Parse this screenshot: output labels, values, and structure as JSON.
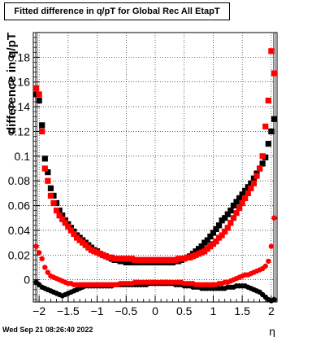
{
  "chart_data": {
    "type": "scatter",
    "title": "Fitted difference in q/pT for Global Rec All EtapT",
    "xlabel": "η",
    "ylabel": "difference in q/pT",
    "xlim": [
      -2.1,
      2.1
    ],
    "ylim": [
      -0.018,
      0.2
    ],
    "xticks": [
      -2,
      -1.5,
      -1,
      -0.5,
      0,
      0.5,
      1,
      1.5,
      2
    ],
    "xtick_labels": [
      "−2",
      "−1.5",
      "−1",
      "−0.5",
      "0",
      "0.5",
      "1",
      "1.5",
      "2"
    ],
    "yticks": [
      0,
      0.02,
      0.04,
      0.06,
      0.08,
      0.1,
      0.12,
      0.14,
      0.16,
      0.18
    ],
    "ytick_labels": [
      "0",
      "0.02",
      "0.04",
      "0.06",
      "0.08",
      "0.1",
      "0.12",
      "0.14",
      "0.16",
      "0.18"
    ],
    "grid": true,
    "series": [
      {
        "color": "#000000",
        "marker": "square",
        "x": [
          -2.05,
          -2.0,
          -1.95,
          -1.9,
          -1.85,
          -1.8,
          -1.75,
          -1.7,
          -1.65,
          -1.6,
          -1.55,
          -1.5,
          -1.45,
          -1.4,
          -1.35,
          -1.3,
          -1.25,
          -1.2,
          -1.15,
          -1.1,
          -1.05,
          -1.0,
          -0.95,
          -0.9,
          -0.85,
          -0.8,
          -0.75,
          -0.7,
          -0.65,
          -0.6,
          -0.55,
          -0.5,
          -0.45,
          -0.4,
          -0.35,
          -0.3,
          -0.25,
          -0.2,
          -0.15,
          -0.1,
          -0.05,
          0.0,
          0.05,
          0.1,
          0.15,
          0.2,
          0.25,
          0.3,
          0.35,
          0.4,
          0.45,
          0.5,
          0.55,
          0.6,
          0.65,
          0.7,
          0.75,
          0.8,
          0.85,
          0.9,
          0.95,
          1.0,
          1.05,
          1.1,
          1.15,
          1.2,
          1.25,
          1.3,
          1.35,
          1.4,
          1.45,
          1.5,
          1.55,
          1.6,
          1.65,
          1.7,
          1.75,
          1.8,
          1.85,
          1.9,
          1.95,
          2.0,
          2.05
        ],
        "y": [
          0.15,
          0.145,
          0.125,
          0.098,
          0.087,
          0.074,
          0.068,
          0.062,
          0.056,
          0.052,
          0.048,
          0.045,
          0.042,
          0.039,
          0.036,
          0.034,
          0.032,
          0.03,
          0.028,
          0.026,
          0.024,
          0.023,
          0.021,
          0.02,
          0.019,
          0.018,
          0.017,
          0.016,
          0.016,
          0.015,
          0.015,
          0.014,
          0.014,
          0.014,
          0.014,
          0.014,
          0.014,
          0.014,
          0.014,
          0.014,
          0.014,
          0.014,
          0.014,
          0.014,
          0.014,
          0.014,
          0.014,
          0.014,
          0.015,
          0.015,
          0.016,
          0.017,
          0.018,
          0.019,
          0.021,
          0.023,
          0.025,
          0.027,
          0.03,
          0.032,
          0.035,
          0.038,
          0.041,
          0.044,
          0.048,
          0.05,
          0.053,
          0.056,
          0.06,
          0.063,
          0.066,
          0.069,
          0.072,
          0.075,
          0.078,
          0.082,
          0.086,
          0.09,
          0.094,
          0.099,
          0.11,
          0.12,
          0.13
        ]
      },
      {
        "color": "#ff0000",
        "marker": "square",
        "x": [
          -2.05,
          -2.0,
          -1.95,
          -1.9,
          -1.85,
          -1.8,
          -1.75,
          -1.7,
          -1.65,
          -1.6,
          -1.55,
          -1.5,
          -1.45,
          -1.4,
          -1.35,
          -1.3,
          -1.25,
          -1.2,
          -1.15,
          -1.1,
          -1.05,
          -1.0,
          -0.95,
          -0.9,
          -0.85,
          -0.8,
          -0.75,
          -0.7,
          -0.65,
          -0.6,
          -0.55,
          -0.5,
          -0.45,
          -0.4,
          -0.35,
          -0.3,
          -0.25,
          -0.2,
          -0.15,
          -0.1,
          -0.05,
          0.0,
          0.05,
          0.1,
          0.15,
          0.2,
          0.25,
          0.3,
          0.35,
          0.4,
          0.45,
          0.5,
          0.55,
          0.6,
          0.65,
          0.7,
          0.75,
          0.8,
          0.85,
          0.9,
          0.95,
          1.0,
          1.05,
          1.1,
          1.15,
          1.2,
          1.25,
          1.3,
          1.35,
          1.4,
          1.45,
          1.5,
          1.55,
          1.6,
          1.65,
          1.7,
          1.75,
          1.8,
          1.85,
          1.9,
          1.95,
          2.0,
          2.05
        ],
        "y": [
          0.155,
          0.15,
          0.12,
          0.09,
          0.08,
          0.068,
          0.062,
          0.056,
          0.052,
          0.049,
          0.046,
          0.043,
          0.04,
          0.037,
          0.034,
          0.032,
          0.03,
          0.028,
          0.026,
          0.024,
          0.023,
          0.022,
          0.021,
          0.02,
          0.019,
          0.018,
          0.018,
          0.017,
          0.017,
          0.017,
          0.017,
          0.017,
          0.017,
          0.017,
          0.016,
          0.016,
          0.016,
          0.016,
          0.016,
          0.016,
          0.016,
          0.016,
          0.016,
          0.016,
          0.016,
          0.016,
          0.016,
          0.016,
          0.016,
          0.017,
          0.017,
          0.017,
          0.018,
          0.018,
          0.019,
          0.02,
          0.021,
          0.022,
          0.023,
          0.025,
          0.027,
          0.029,
          0.031,
          0.034,
          0.036,
          0.039,
          0.042,
          0.046,
          0.05,
          0.054,
          0.058,
          0.062,
          0.066,
          0.07,
          0.074,
          0.078,
          0.084,
          0.09,
          0.1,
          0.124,
          0.145,
          0.185,
          0.167
        ]
      },
      {
        "color": "#000000",
        "marker": "circle",
        "x": [
          -2.05,
          -2.0,
          -1.95,
          -1.9,
          -1.85,
          -1.8,
          -1.75,
          -1.7,
          -1.65,
          -1.6,
          -1.55,
          -1.5,
          -1.45,
          -1.4,
          -1.35,
          -1.3,
          -1.25,
          -1.2,
          -1.15,
          -1.1,
          -1.05,
          -1.0,
          -0.95,
          -0.9,
          -0.85,
          -0.8,
          -0.75,
          -0.7,
          -0.65,
          -0.6,
          -0.55,
          -0.5,
          -0.45,
          -0.4,
          -0.35,
          -0.3,
          -0.25,
          -0.2,
          -0.15,
          -0.1,
          -0.05,
          0.0,
          0.05,
          0.1,
          0.15,
          0.2,
          0.25,
          0.3,
          0.35,
          0.4,
          0.45,
          0.5,
          0.55,
          0.6,
          0.65,
          0.7,
          0.75,
          0.8,
          0.85,
          0.9,
          0.95,
          1.0,
          1.05,
          1.1,
          1.15,
          1.2,
          1.25,
          1.3,
          1.35,
          1.4,
          1.45,
          1.5,
          1.55,
          1.6,
          1.65,
          1.7,
          1.75,
          1.8,
          1.85,
          1.9,
          1.95,
          2.0,
          2.05
        ],
        "y": [
          -0.002,
          -0.004,
          -0.006,
          -0.007,
          -0.008,
          -0.009,
          -0.01,
          -0.011,
          -0.012,
          -0.013,
          -0.012,
          -0.011,
          -0.01,
          -0.009,
          -0.008,
          -0.007,
          -0.006,
          -0.005,
          -0.005,
          -0.005,
          -0.005,
          -0.005,
          -0.005,
          -0.005,
          -0.005,
          -0.005,
          -0.005,
          -0.004,
          -0.004,
          -0.004,
          -0.004,
          -0.004,
          -0.004,
          -0.004,
          -0.004,
          -0.004,
          -0.004,
          -0.004,
          -0.004,
          -0.003,
          -0.003,
          -0.003,
          -0.003,
          -0.003,
          -0.003,
          -0.003,
          -0.003,
          -0.003,
          -0.004,
          -0.004,
          -0.004,
          -0.005,
          -0.005,
          -0.005,
          -0.006,
          -0.006,
          -0.006,
          -0.007,
          -0.007,
          -0.007,
          -0.007,
          -0.007,
          -0.007,
          -0.007,
          -0.007,
          -0.007,
          -0.006,
          -0.006,
          -0.006,
          -0.005,
          -0.005,
          -0.005,
          -0.005,
          -0.006,
          -0.007,
          -0.008,
          -0.009,
          -0.01,
          -0.012,
          -0.014,
          -0.016,
          -0.017,
          -0.016
        ]
      },
      {
        "color": "#ff0000",
        "marker": "circle",
        "x": [
          -2.05,
          -2.0,
          -1.95,
          -1.9,
          -1.85,
          -1.8,
          -1.75,
          -1.7,
          -1.65,
          -1.6,
          -1.55,
          -1.5,
          -1.45,
          -1.4,
          -1.35,
          -1.3,
          -1.25,
          -1.2,
          -1.15,
          -1.1,
          -1.05,
          -1.0,
          -0.95,
          -0.9,
          -0.85,
          -0.8,
          -0.75,
          -0.7,
          -0.65,
          -0.6,
          -0.55,
          -0.5,
          -0.45,
          -0.4,
          -0.35,
          -0.3,
          -0.25,
          -0.2,
          -0.15,
          -0.1,
          -0.05,
          0.0,
          0.05,
          0.1,
          0.15,
          0.2,
          0.25,
          0.3,
          0.35,
          0.4,
          0.45,
          0.5,
          0.55,
          0.6,
          0.65,
          0.7,
          0.75,
          0.8,
          0.85,
          0.9,
          0.95,
          1.0,
          1.05,
          1.1,
          1.15,
          1.2,
          1.25,
          1.3,
          1.35,
          1.4,
          1.45,
          1.5,
          1.55,
          1.6,
          1.65,
          1.7,
          1.75,
          1.8,
          1.85,
          1.9,
          1.95,
          2.0,
          2.05
        ],
        "y": [
          0.027,
          0.022,
          0.017,
          0.01,
          0.006,
          0.003,
          0.002,
          0.001,
          0.0,
          -0.001,
          -0.002,
          -0.003,
          -0.003,
          -0.004,
          -0.004,
          -0.004,
          -0.004,
          -0.004,
          -0.004,
          -0.004,
          -0.004,
          -0.004,
          -0.004,
          -0.004,
          -0.004,
          -0.004,
          -0.004,
          -0.004,
          -0.004,
          -0.003,
          -0.003,
          -0.003,
          -0.003,
          -0.003,
          -0.002,
          -0.002,
          -0.002,
          -0.002,
          -0.002,
          -0.002,
          -0.002,
          -0.002,
          -0.002,
          -0.002,
          -0.002,
          -0.002,
          -0.002,
          -0.002,
          -0.002,
          -0.002,
          -0.002,
          -0.003,
          -0.003,
          -0.003,
          -0.003,
          -0.004,
          -0.004,
          -0.004,
          -0.004,
          -0.004,
          -0.004,
          -0.004,
          -0.004,
          -0.003,
          -0.003,
          -0.002,
          -0.002,
          -0.001,
          0.0,
          0.001,
          0.002,
          0.003,
          0.004,
          0.004,
          0.005,
          0.006,
          0.007,
          0.008,
          0.009,
          0.011,
          0.015,
          0.027,
          0.05
        ]
      }
    ]
  },
  "footer": {
    "date": "Wed Sep 21 08:26:40 2022"
  }
}
